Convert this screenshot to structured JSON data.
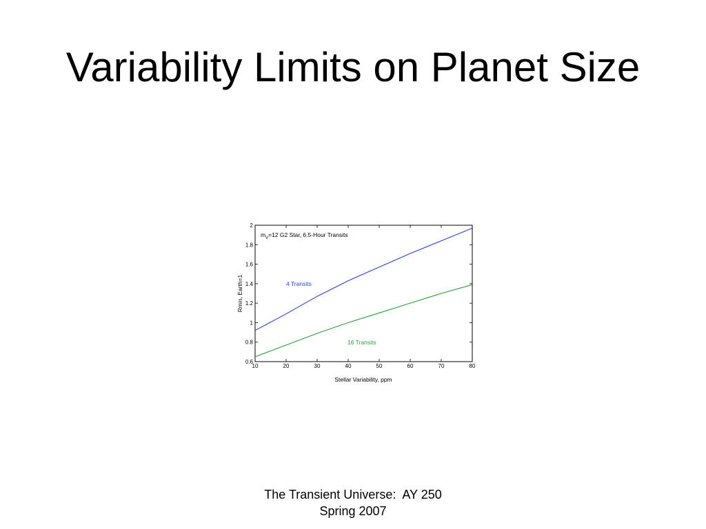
{
  "slide": {
    "title": "Variability Limits on Planet Size",
    "footer_line1": "The Transient Universe:  AY 250",
    "footer_line2": "Spring 2007"
  },
  "chart_data": {
    "type": "line",
    "title_prefix": "m",
    "title_subscript": "V",
    "title_rest": "=12 G2 Star, 6.5-Hour Transits",
    "xlabel": "Stellar Variability, ppm",
    "ylabel": "Rmin, Earth=1",
    "xlim": [
      10,
      80
    ],
    "ylim": [
      0.6,
      2
    ],
    "xticks": [
      10,
      20,
      30,
      40,
      50,
      60,
      70,
      80
    ],
    "yticks": [
      0.6,
      0.8,
      1,
      1.2,
      1.4,
      1.6,
      1.8,
      2
    ],
    "ytick_labels": [
      "0.6",
      "0.8",
      "1",
      "1.2",
      "1.4",
      "1.6",
      "1.8",
      "2"
    ],
    "grid": false,
    "series": [
      {
        "name": "4 Transits",
        "color": "#2a3fd6",
        "x": [
          10,
          20,
          30,
          40,
          50,
          60,
          70,
          80
        ],
        "y": [
          0.92,
          1.09,
          1.27,
          1.43,
          1.57,
          1.71,
          1.84,
          1.97
        ]
      },
      {
        "name": "16 Transits",
        "color": "#2e9a3a",
        "x": [
          10,
          20,
          30,
          40,
          50,
          60,
          70,
          80
        ],
        "y": [
          0.65,
          0.77,
          0.89,
          1.0,
          1.1,
          1.2,
          1.3,
          1.39
        ]
      }
    ]
  }
}
